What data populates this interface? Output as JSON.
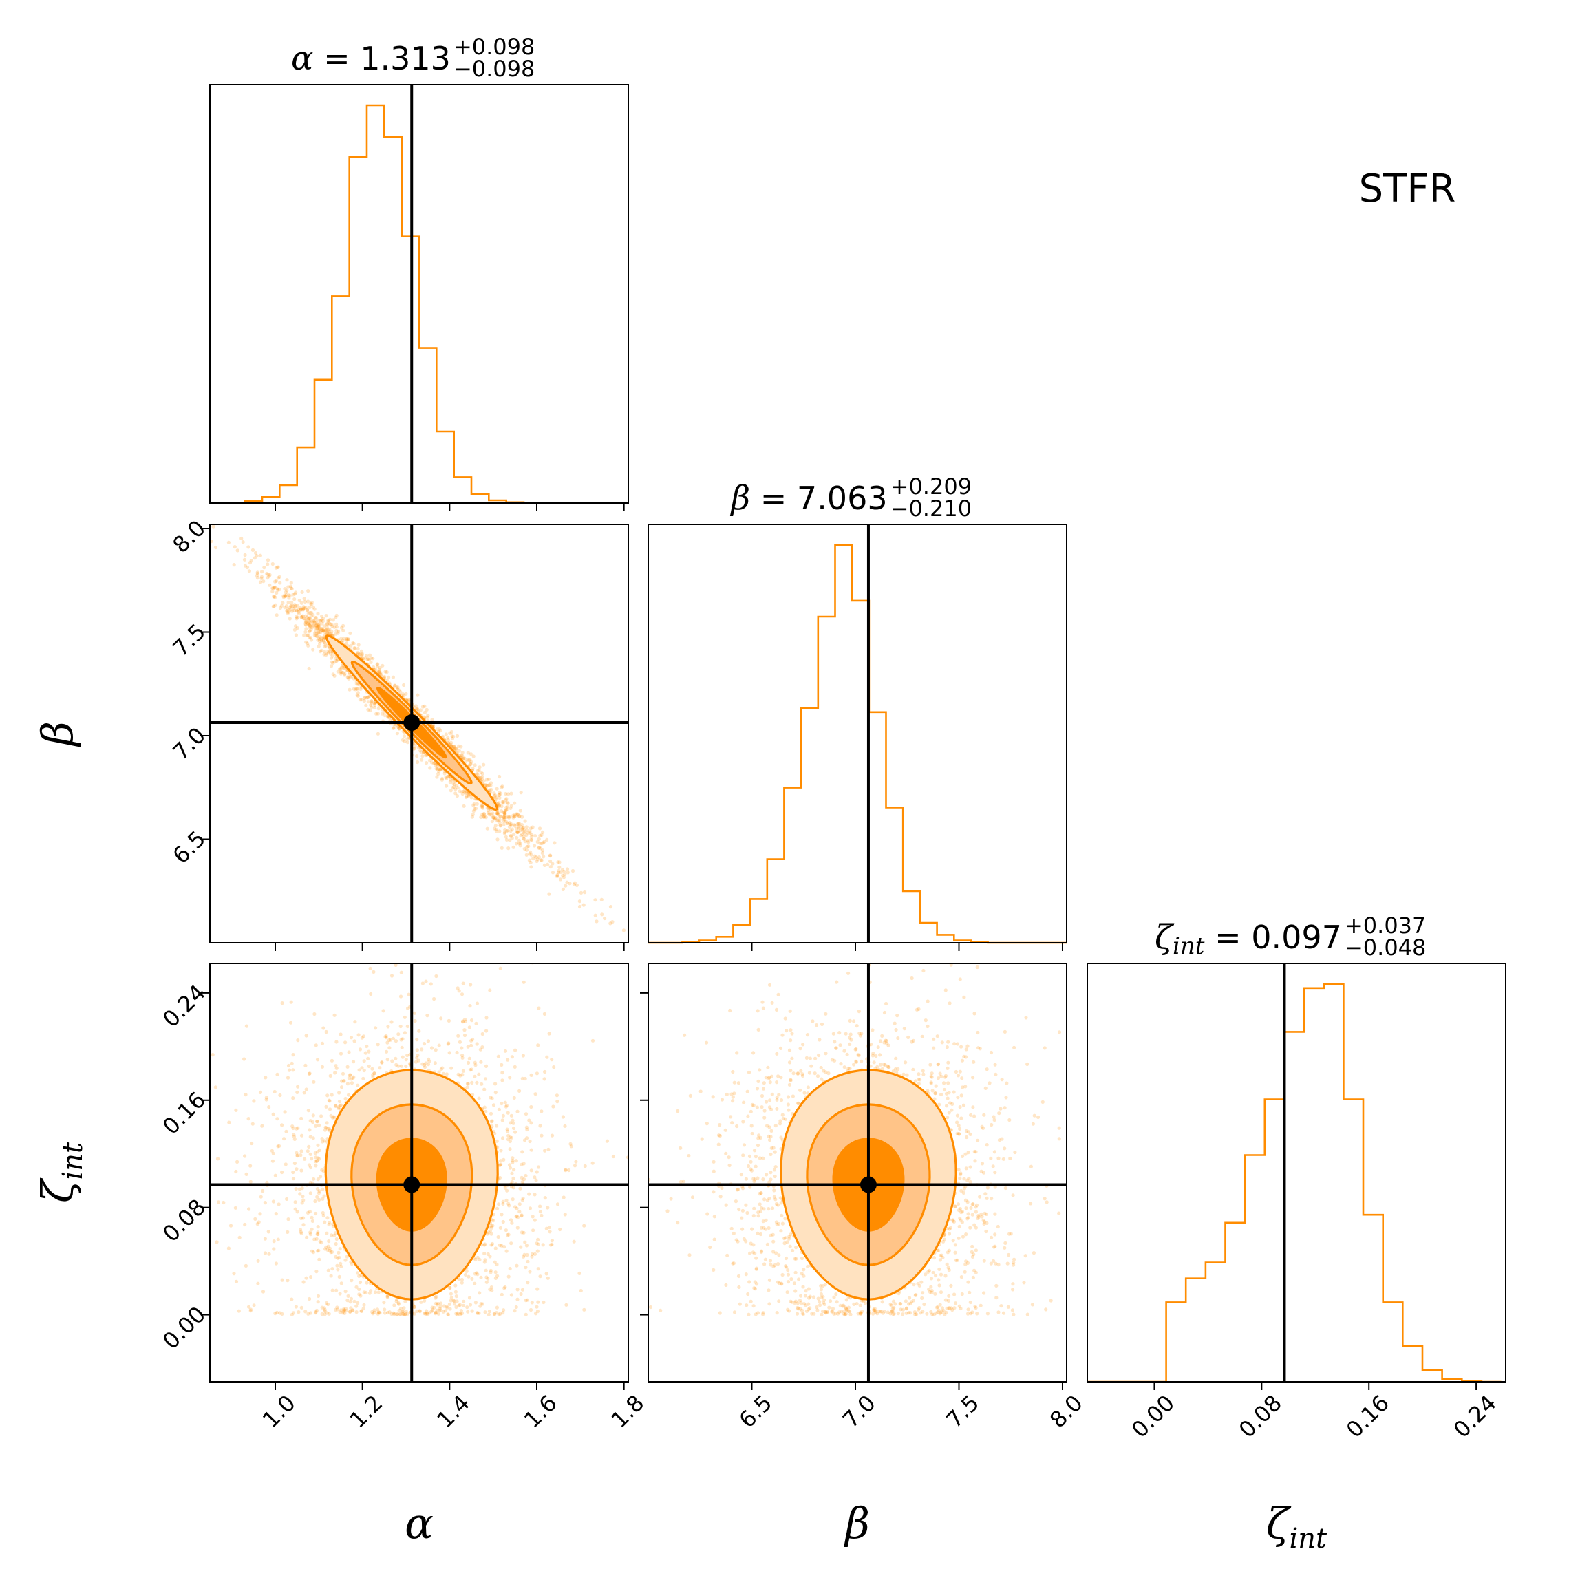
{
  "figure": {
    "label": "STFR",
    "accent_color": "#ff8c00",
    "truth_color": "#000000"
  },
  "chart_data": {
    "type": "corner",
    "parameters": [
      {
        "symbol": "α",
        "sub": "",
        "title": {
          "symbol": "α",
          "sub": "",
          "value": "1.313",
          "plus": "+0.098",
          "minus": "−0.098"
        },
        "range": [
          0.85,
          1.81
        ],
        "ticks": [
          1.0,
          1.2,
          1.4,
          1.6,
          1.8
        ],
        "tick_labels": [
          "1.0",
          "1.2",
          "1.4",
          "1.6",
          "1.8"
        ],
        "truth": 1.313
      },
      {
        "symbol": "β",
        "sub": "",
        "title": {
          "symbol": "β",
          "sub": "",
          "value": "7.063",
          "plus": "+0.209",
          "minus": "−0.210"
        },
        "range": [
          6.0,
          8.02
        ],
        "ticks": [
          6.5,
          7.0,
          7.5,
          8.0
        ],
        "tick_labels": [
          "6.5",
          "7.0",
          "7.5",
          "8.0"
        ],
        "truth": 7.063
      },
      {
        "symbol": "ζ",
        "sub": "int",
        "title": {
          "symbol": "ζ",
          "sub": "int",
          "value": "0.097",
          "plus": "+0.037",
          "minus": "−0.048"
        },
        "range": [
          -0.05,
          0.262
        ],
        "ticks": [
          0.0,
          0.08,
          0.16,
          0.24
        ],
        "tick_labels": [
          "0.00",
          "0.08",
          "0.16",
          "0.24"
        ],
        "truth": 0.097
      }
    ],
    "histograms": [
      {
        "param": 0,
        "bin_start": 0.85,
        "bin_width": 0.04,
        "counts": [
          0.0,
          0.001,
          0.005,
          0.015,
          0.045,
          0.14,
          0.31,
          0.52,
          0.87,
          1.0,
          0.92,
          0.67,
          0.39,
          0.18,
          0.065,
          0.022,
          0.007,
          0.002,
          0.001,
          0.0,
          0.0,
          0.0,
          0.0,
          0.0
        ]
      },
      {
        "param": 1,
        "bin_start": 6.0,
        "bin_width": 0.082,
        "counts": [
          0.0,
          0.0,
          0.002,
          0.006,
          0.015,
          0.045,
          0.11,
          0.21,
          0.39,
          0.59,
          0.82,
          1.0,
          0.86,
          0.58,
          0.34,
          0.13,
          0.05,
          0.02,
          0.006,
          0.002,
          0.0,
          0.0,
          0.0,
          0.0,
          0.0
        ]
      },
      {
        "param": 2,
        "bin_start": -0.05,
        "bin_width": 0.0147,
        "counts": [
          0.0,
          0.0,
          0.0,
          0.0,
          0.2,
          0.26,
          0.3,
          0.4,
          0.57,
          0.71,
          0.88,
          0.99,
          1.0,
          0.71,
          0.42,
          0.2,
          0.09,
          0.03,
          0.007,
          0.002,
          0.0
        ]
      }
    ],
    "pairs": [
      {
        "x": 0,
        "y": 1,
        "center": [
          1.313,
          7.063
        ],
        "sigma": [
          0.098,
          0.21
        ],
        "correlation": -0.985
      },
      {
        "x": 0,
        "y": 2,
        "center": [
          1.313,
          0.097
        ],
        "sigma": [
          0.098,
          0.045
        ],
        "correlation": 0.0
      },
      {
        "x": 1,
        "y": 2,
        "center": [
          7.063,
          0.097
        ],
        "sigma": [
          0.21,
          0.045
        ],
        "correlation": 0.0
      }
    ]
  }
}
